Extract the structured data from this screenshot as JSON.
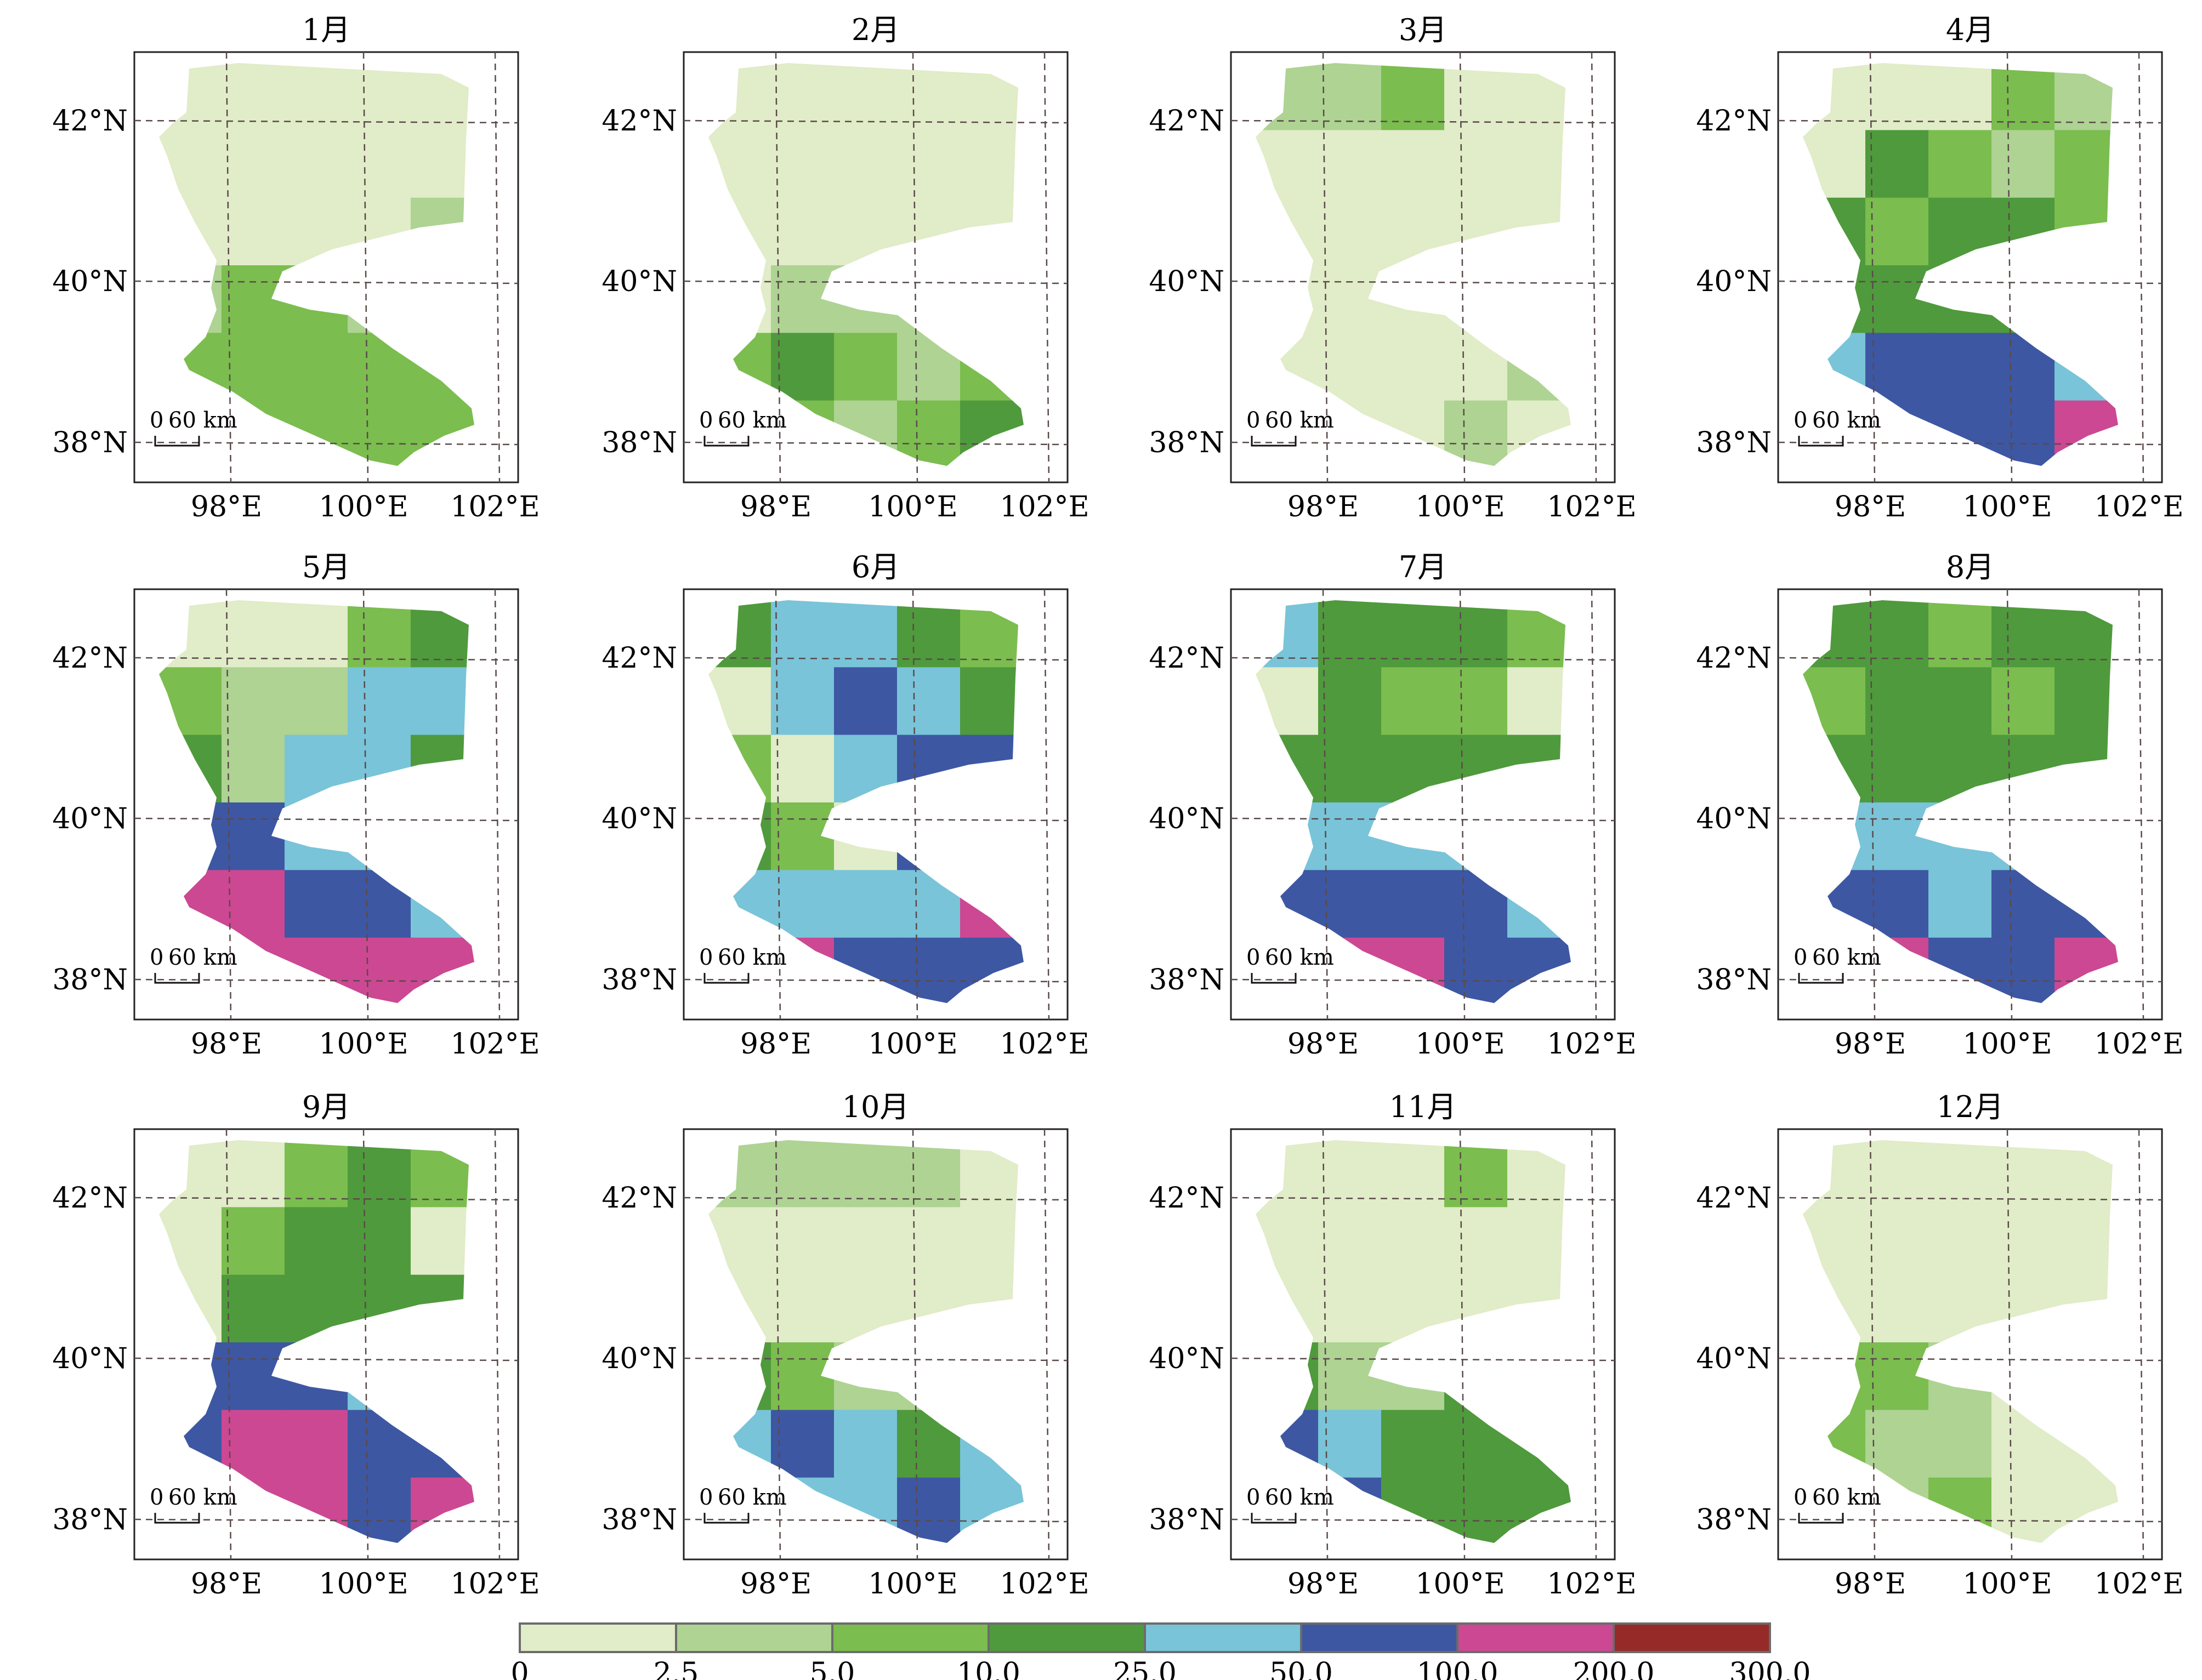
{
  "figure": {
    "panels": [
      {
        "title": "1月",
        "pattern": [
          "L",
          "L",
          "L",
          "L",
          "L",
          "L",
          "L",
          "L",
          "L",
          "L",
          "L",
          "L",
          "L",
          "L",
          "G2",
          "G2",
          "G3",
          "G3",
          "G2",
          "G3",
          "G3",
          "G3",
          "G3",
          "G3",
          "G3",
          "G3",
          "G3",
          "G3",
          "G3",
          "G3"
        ]
      },
      {
        "title": "2月",
        "pattern": [
          "L",
          "L",
          "L",
          "L",
          "L",
          "L",
          "L",
          "L",
          "L",
          "L",
          "L",
          "L",
          "L",
          "L",
          "L",
          "L",
          "G2",
          "G2",
          "G2",
          "G1",
          "G3",
          "G4",
          "G3",
          "G2",
          "G3",
          "G3",
          "G3",
          "G2",
          "G3",
          "G4"
        ]
      },
      {
        "title": "3月",
        "pattern": [
          "G2",
          "G2",
          "G3",
          "L",
          "L",
          "L",
          "L",
          "L",
          "L",
          "L",
          "L",
          "L",
          "L",
          "L",
          "L",
          "L",
          "L",
          "L",
          "L",
          "L",
          "L",
          "L",
          "L",
          "L",
          "G2",
          "G2",
          "L",
          "L",
          "G2",
          "L"
        ]
      },
      {
        "title": "4月",
        "pattern": [
          "L",
          "L",
          "L",
          "G3",
          "G2",
          "L",
          "G4",
          "G3",
          "G2",
          "G3",
          "G4",
          "G3",
          "G4",
          "G4",
          "G3",
          "G4",
          "G4",
          "G4",
          "G4",
          "G3",
          "B1",
          "B2",
          "B2",
          "B2",
          "B1",
          "B2",
          "B2",
          "B2",
          "B2",
          "P"
        ]
      },
      {
        "title": "5月",
        "pattern": [
          "L",
          "L",
          "L",
          "G3",
          "G4",
          "G3",
          "G2",
          "G2",
          "B1",
          "B1",
          "G4",
          "G2",
          "B1",
          "B1",
          "G4",
          "B2",
          "B2",
          "B1",
          "B1",
          "B1",
          "P",
          "P",
          "B2",
          "B2",
          "B1",
          "P",
          "P",
          "P",
          "P",
          "P"
        ]
      },
      {
        "title": "6月",
        "pattern": [
          "G4",
          "B1",
          "B1",
          "G4",
          "G3",
          "L",
          "B1",
          "B2",
          "B1",
          "G4",
          "G3",
          "L",
          "B1",
          "B2",
          "B2",
          "G4",
          "G3",
          "L",
          "B2",
          "B2",
          "B1",
          "B1",
          "B1",
          "B1",
          "P",
          "P",
          "P",
          "B2",
          "B2",
          "B2"
        ]
      },
      {
        "title": "7月",
        "pattern": [
          "B1",
          "G4",
          "G4",
          "G4",
          "G3",
          "L",
          "G4",
          "G3",
          "G3",
          "L",
          "G4",
          "G4",
          "G4",
          "G4",
          "G4",
          "B1",
          "B1",
          "B1",
          "B1",
          "B1",
          "B2",
          "B2",
          "B2",
          "B2",
          "B1",
          "P",
          "P",
          "P",
          "B2",
          "B2"
        ]
      },
      {
        "title": "8月",
        "pattern": [
          "G4",
          "G4",
          "G3",
          "G4",
          "G4",
          "G3",
          "G4",
          "G4",
          "G3",
          "G4",
          "G4",
          "G4",
          "G4",
          "G4",
          "G4",
          "B1",
          "B1",
          "B1",
          "B1",
          "B1",
          "B2",
          "B2",
          "B1",
          "B2",
          "B2",
          "P",
          "P",
          "B2",
          "B2",
          "P"
        ]
      },
      {
        "title": "9月",
        "pattern": [
          "L",
          "L",
          "G3",
          "G4",
          "G3",
          "L",
          "G3",
          "G4",
          "G4",
          "L",
          "L",
          "G4",
          "G4",
          "G4",
          "G4",
          "B2",
          "B2",
          "B2",
          "B1",
          "B1",
          "B2",
          "P",
          "P",
          "B2",
          "B2",
          "P",
          "P",
          "P",
          "B2",
          "P"
        ]
      },
      {
        "title": "10月",
        "pattern": [
          "G2",
          "G2",
          "G2",
          "G2",
          "L",
          "L",
          "L",
          "L",
          "L",
          "L",
          "L",
          "L",
          "L",
          "L",
          "L",
          "G4",
          "G3",
          "G2",
          "G2",
          "G2",
          "B1",
          "B2",
          "B1",
          "G4",
          "B1",
          "B2",
          "B1",
          "B1",
          "B2",
          "B1"
        ]
      },
      {
        "title": "11月",
        "pattern": [
          "L",
          "L",
          "L",
          "G3",
          "L",
          "L",
          "L",
          "L",
          "L",
          "L",
          "L",
          "L",
          "L",
          "L",
          "L",
          "G4",
          "G2",
          "G2",
          "G4",
          "G4",
          "B2",
          "B1",
          "G4",
          "G4",
          "G4",
          "B1",
          "B2",
          "G4",
          "G4",
          "G4"
        ]
      },
      {
        "title": "12月",
        "pattern": [
          "L",
          "L",
          "L",
          "L",
          "L",
          "L",
          "L",
          "L",
          "L",
          "L",
          "L",
          "L",
          "L",
          "L",
          "L",
          "G3",
          "G3",
          "G2",
          "L",
          "L",
          "G3",
          "G2",
          "G2",
          "L",
          "L",
          "G3",
          "G2",
          "G3",
          "L",
          "L"
        ]
      }
    ],
    "lat_ticks": [
      "42°N",
      "40°N",
      "38°N"
    ],
    "lon_ticks": [
      "98°E",
      "100°E",
      "102°E"
    ],
    "scale_bar": {
      "zero": "0",
      "distance": "60 km"
    },
    "colorbar": {
      "colors": [
        "#e1ecc8",
        "#aed393",
        "#7bbd4f",
        "#4f9a3c",
        "#79c4d8",
        "#3d57a3",
        "#cc4893",
        "#962a28"
      ],
      "tick_labels": [
        "0",
        "2.5",
        "5.0",
        "10.0",
        "25.0",
        "50.0",
        "100.0",
        "200.0",
        "300.0"
      ]
    },
    "class_colors": {
      "L": "#e1ecc8",
      "G2": "#aed393",
      "G3": "#7bbd4f",
      "G4": "#4f9a3c",
      "B1": "#79c4d8",
      "B2": "#3d57a3",
      "P": "#cc4893",
      "R": "#962a28"
    }
  }
}
